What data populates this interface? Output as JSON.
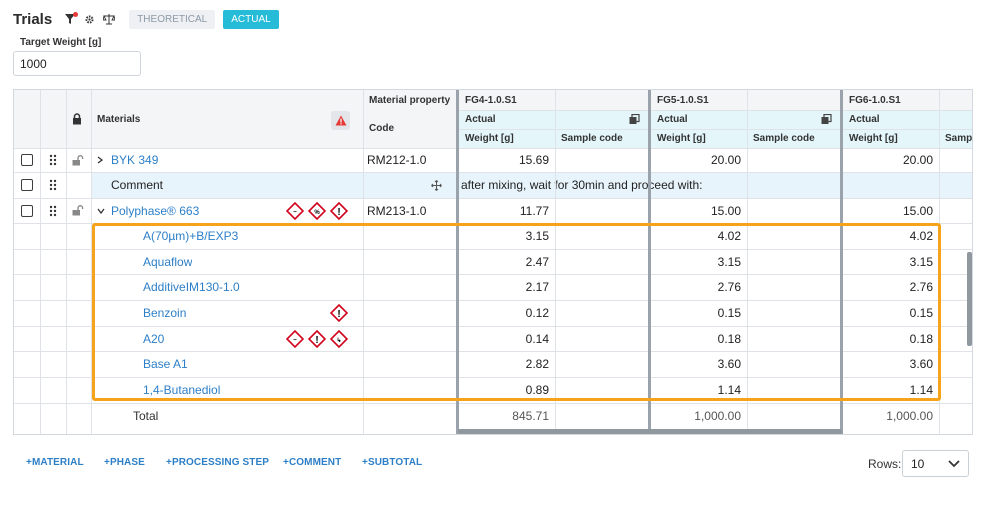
{
  "header": {
    "title": "Trials",
    "toggle_theoretical": "THEORETICAL",
    "toggle_actual": "ACTUAL"
  },
  "target_weight": {
    "label": "Target Weight [g]",
    "value": "1000"
  },
  "grid": {
    "headers": {
      "materials": "Materials",
      "material_property": "Material property",
      "code": "Code",
      "trials": [
        {
          "name": "FG4-1.0.S1",
          "mode": "Actual",
          "weight": "Weight [g]",
          "sample": "Sample code"
        },
        {
          "name": "FG5-1.0.S1",
          "mode": "Actual",
          "weight": "Weight [g]",
          "sample": "Sample code"
        },
        {
          "name": "FG6-1.0.S1",
          "mode": "Actual",
          "weight": "Weight [g]",
          "sample": "Sampl"
        }
      ]
    },
    "rows": [
      {
        "type": "material",
        "name": "BYK 349",
        "code": "RM212-1.0",
        "w1": "15.69",
        "w2": "20.00",
        "w3": "20.00"
      },
      {
        "type": "comment",
        "name": "Comment",
        "text": "after mixing, wait for 30min and proceed with:"
      },
      {
        "type": "material",
        "name": "Polyphase® 663",
        "code": "RM213-1.0",
        "w1": "11.77",
        "w2": "15.00",
        "w3": "15.00"
      },
      {
        "type": "sub",
        "name": "A(70µm)+B/EXP3",
        "w1": "3.15",
        "w2": "4.02",
        "w3": "4.02"
      },
      {
        "type": "sub",
        "name": "Aquaflow",
        "w1": "2.47",
        "w2": "3.15",
        "w3": "3.15"
      },
      {
        "type": "sub",
        "name": "AdditiveIM130-1.0",
        "w1": "2.17",
        "w2": "2.76",
        "w3": "2.76"
      },
      {
        "type": "sub",
        "name": "Benzoin",
        "w1": "0.12",
        "w2": "0.15",
        "w3": "0.15"
      },
      {
        "type": "sub",
        "name": "A20",
        "w1": "0.14",
        "w2": "0.18",
        "w3": "0.18"
      },
      {
        "type": "sub",
        "name": "Base A1",
        "w1": "2.82",
        "w2": "3.60",
        "w3": "3.60"
      },
      {
        "type": "sub",
        "name": "1,4-Butanediol",
        "w1": "0.89",
        "w2": "1.14",
        "w3": "1.14"
      }
    ],
    "total": {
      "label": "Total",
      "w1": "845.71",
      "w2": "1,000.00",
      "w3": "1,000.00"
    }
  },
  "footer": {
    "buttons": [
      "+MATERIAL",
      "+PHASE",
      "+PROCESSING STEP",
      "+COMMENT",
      "+SUBTOTAL"
    ],
    "rows_label": "Rows:",
    "rows_value": "10"
  },
  "colors": {
    "accent": "#26bcd7",
    "link": "#2d7fc7",
    "highlight": "#f7a21b",
    "hazard": "#d0021b"
  }
}
